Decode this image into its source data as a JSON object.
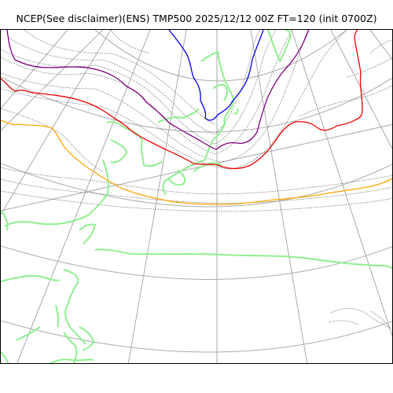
{
  "title": "NCEP(See disclaimer)(ENS) TMP500 2025/12/12 00Z FT=120 (init 0700Z)",
  "colors": {
    "graticule": "#aaaaaa",
    "coastline": "#90ee90",
    "minor_isotherm": "#707070",
    "blue_isotherm": "#0000ee",
    "purple_isotherm": "#800080",
    "red_isotherm": "#ee0000",
    "orange_isotherm": "#ffa500",
    "frame": "#000000"
  },
  "layers": {
    "graticule": "latitude-longitude grid",
    "coastline": "coastlines",
    "isotherms": "500 hPa temperature contours"
  }
}
